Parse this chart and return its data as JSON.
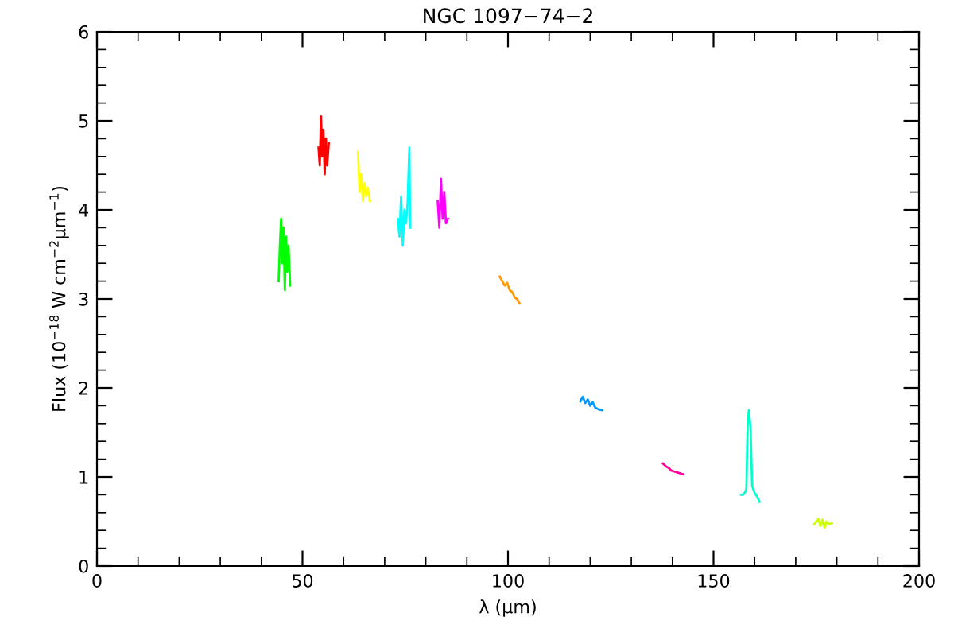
{
  "chart_data": {
    "type": "line",
    "title": "NGC 1097−74−2",
    "xlabel": "λ (μm)",
    "ylabel": "Flux (10$^{−18}$ W cm$^{−2}$μm$^{−1}$)",
    "xlim": [
      0,
      200
    ],
    "ylim": [
      0,
      6
    ],
    "xticks": [
      0,
      50,
      100,
      150,
      200
    ],
    "yticks": [
      0,
      1,
      2,
      3,
      4,
      5,
      6
    ],
    "grid": false,
    "legend": false,
    "series": [
      {
        "color": "#00ff00",
        "x": [
          44.2,
          44.5,
          44.8,
          45.1,
          45.4,
          45.7,
          46.0,
          46.3,
          46.6,
          47.0
        ],
        "values": [
          3.2,
          3.6,
          3.9,
          3.4,
          3.8,
          3.1,
          3.7,
          3.3,
          3.6,
          3.15
        ]
      },
      {
        "color": "#ff0000",
        "x": [
          53.9,
          54.2,
          54.5,
          54.8,
          55.1,
          55.4,
          55.7,
          56.0,
          56.4
        ],
        "values": [
          4.7,
          4.5,
          5.05,
          4.6,
          4.9,
          4.4,
          4.8,
          4.5,
          4.75
        ]
      },
      {
        "color": "#ffff00",
        "x": [
          63.5,
          63.9,
          64.3,
          64.7,
          65.1,
          65.5,
          65.9,
          66.4
        ],
        "values": [
          4.65,
          4.2,
          4.4,
          4.1,
          4.3,
          4.15,
          4.25,
          4.1
        ]
      },
      {
        "color": "#00ffff",
        "x": [
          73.2,
          73.6,
          74.0,
          74.4,
          74.8,
          75.2,
          75.6,
          76.0,
          76.2
        ],
        "values": [
          3.9,
          3.7,
          4.15,
          3.6,
          4.0,
          3.85,
          4.1,
          4.7,
          3.8
        ]
      },
      {
        "color": "#ff00ff",
        "x": [
          82.9,
          83.3,
          83.7,
          84.1,
          84.5,
          84.9,
          85.4
        ],
        "values": [
          4.1,
          3.8,
          4.35,
          3.9,
          4.2,
          3.85,
          3.9
        ]
      },
      {
        "color": "#ff9900",
        "x": [
          98.0,
          98.6,
          99.2,
          99.8,
          100.4,
          101.0,
          101.6,
          102.2,
          102.8
        ],
        "values": [
          3.25,
          3.2,
          3.15,
          3.18,
          3.1,
          3.08,
          3.02,
          3.0,
          2.95
        ]
      },
      {
        "color": "#0099ff",
        "x": [
          117.6,
          118.2,
          118.8,
          119.4,
          120.0,
          120.6,
          121.2,
          122.0,
          122.9
        ],
        "values": [
          1.85,
          1.9,
          1.83,
          1.87,
          1.8,
          1.84,
          1.78,
          1.76,
          1.75
        ]
      },
      {
        "color": "#ff0099",
        "x": [
          137.7,
          138.4,
          139.1,
          139.8,
          140.5,
          141.2,
          141.9,
          142.6
        ],
        "values": [
          1.15,
          1.12,
          1.1,
          1.07,
          1.06,
          1.05,
          1.04,
          1.03
        ]
      },
      {
        "color": "#00ffcc",
        "x": [
          156.7,
          157.2,
          157.7,
          158.0,
          158.3,
          158.6,
          159.0,
          159.4,
          160.0,
          160.6,
          161.2
        ],
        "values": [
          0.8,
          0.8,
          0.83,
          0.87,
          1.6,
          1.75,
          1.55,
          0.9,
          0.82,
          0.78,
          0.72
        ]
      },
      {
        "color": "#ccff00",
        "x": [
          174.5,
          175.0,
          175.5,
          176.0,
          176.5,
          177.0,
          177.5,
          178.0,
          178.8
        ],
        "values": [
          0.47,
          0.5,
          0.53,
          0.45,
          0.52,
          0.43,
          0.5,
          0.47,
          0.48
        ]
      }
    ]
  }
}
